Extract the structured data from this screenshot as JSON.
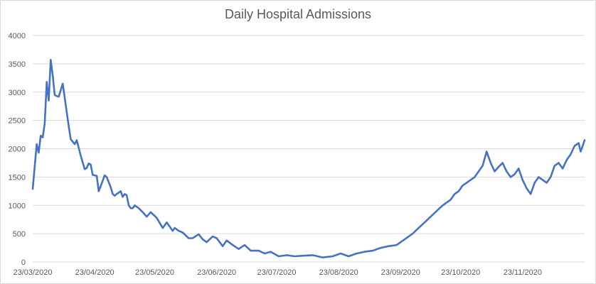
{
  "chart_data": {
    "type": "line",
    "title": "Daily Hospital Admissions",
    "xlabel": "",
    "ylabel": "",
    "ylim": [
      0,
      4000
    ],
    "yticks": [
      0,
      500,
      1000,
      1500,
      2000,
      2500,
      3000,
      3500,
      4000
    ],
    "xlim": [
      "2020-03-23",
      "2020-12-24"
    ],
    "xticks": [
      {
        "date": "2020-03-23",
        "label": "23/03/2020"
      },
      {
        "date": "2020-04-23",
        "label": "23/04/2020"
      },
      {
        "date": "2020-05-23",
        "label": "23/05/2020"
      },
      {
        "date": "2020-06-23",
        "label": "23/06/2020"
      },
      {
        "date": "2020-07-23",
        "label": "23/07/2020"
      },
      {
        "date": "2020-08-23",
        "label": "23/08/2020"
      },
      {
        "date": "2020-09-23",
        "label": "23/09/2020"
      },
      {
        "date": "2020-10-23",
        "label": "23/10/2020"
      },
      {
        "date": "2020-11-23",
        "label": "23/11/2020"
      }
    ],
    "grid": true,
    "legend": "none",
    "color": "#4472c4",
    "series": [
      {
        "x": [
          "2020-03-23",
          "2020-03-25",
          "2020-03-26",
          "2020-03-27",
          "2020-03-28",
          "2020-03-29",
          "2020-03-30",
          "2020-03-31",
          "2020-04-01",
          "2020-04-02",
          "2020-04-03",
          "2020-04-04",
          "2020-04-05",
          "2020-04-07",
          "2020-04-09",
          "2020-04-10",
          "2020-04-11",
          "2020-04-13",
          "2020-04-14",
          "2020-04-16",
          "2020-04-18",
          "2020-04-19",
          "2020-04-20",
          "2020-04-21",
          "2020-04-22",
          "2020-04-23",
          "2020-04-24",
          "2020-04-25",
          "2020-04-26",
          "2020-04-28",
          "2020-04-29",
          "2020-05-01",
          "2020-05-02",
          "2020-05-03",
          "2020-05-04",
          "2020-05-06",
          "2020-05-07",
          "2020-05-08",
          "2020-05-09",
          "2020-05-10",
          "2020-05-11",
          "2020-05-12",
          "2020-05-13",
          "2020-05-15",
          "2020-05-17",
          "2020-05-19",
          "2020-05-21",
          "2020-05-24",
          "2020-05-27",
          "2020-05-29",
          "2020-06-01",
          "2020-06-02",
          "2020-06-04",
          "2020-06-06",
          "2020-06-09",
          "2020-06-11",
          "2020-06-14",
          "2020-06-16",
          "2020-06-18",
          "2020-06-21",
          "2020-06-23",
          "2020-06-26",
          "2020-06-28",
          "2020-07-01",
          "2020-07-04",
          "2020-07-07",
          "2020-07-10",
          "2020-07-14",
          "2020-07-17",
          "2020-07-20",
          "2020-07-24",
          "2020-07-28",
          "2020-08-01",
          "2020-08-05",
          "2020-08-10",
          "2020-08-15",
          "2020-08-20",
          "2020-08-24",
          "2020-08-28",
          "2020-09-01",
          "2020-09-05",
          "2020-09-09",
          "2020-09-13",
          "2020-09-17",
          "2020-09-21",
          "2020-09-25",
          "2020-09-29",
          "2020-10-02",
          "2020-10-05",
          "2020-10-08",
          "2020-10-11",
          "2020-10-14",
          "2020-10-16",
          "2020-10-18",
          "2020-10-20",
          "2020-10-22",
          "2020-10-24",
          "2020-10-26",
          "2020-10-28",
          "2020-10-30",
          "2020-11-01",
          "2020-11-03",
          "2020-11-05",
          "2020-11-07",
          "2020-11-09",
          "2020-11-11",
          "2020-11-13",
          "2020-11-15",
          "2020-11-17",
          "2020-11-19",
          "2020-11-21",
          "2020-11-23",
          "2020-11-25",
          "2020-11-27",
          "2020-11-29",
          "2020-12-01",
          "2020-12-03",
          "2020-12-05",
          "2020-12-07",
          "2020-12-09",
          "2020-12-11",
          "2020-12-13",
          "2020-12-15",
          "2020-12-17",
          "2020-12-19",
          "2020-12-21",
          "2020-12-22",
          "2020-12-23",
          "2020-12-24"
        ],
        "y": [
          1290,
          2080,
          1930,
          2230,
          2200,
          2450,
          3180,
          2850,
          3570,
          3300,
          2950,
          2930,
          2920,
          3150,
          2650,
          2400,
          2170,
          2080,
          2150,
          1880,
          1640,
          1660,
          1740,
          1720,
          1540,
          1530,
          1520,
          1250,
          1340,
          1530,
          1500,
          1320,
          1200,
          1170,
          1200,
          1250,
          1150,
          1200,
          1180,
          1000,
          950,
          950,
          1000,
          950,
          880,
          800,
          880,
          780,
          600,
          700,
          550,
          600,
          550,
          520,
          420,
          420,
          490,
          400,
          350,
          450,
          420,
          280,
          380,
          300,
          230,
          300,
          200,
          200,
          150,
          180,
          100,
          120,
          100,
          110,
          120,
          80,
          100,
          150,
          100,
          150,
          180,
          200,
          250,
          280,
          300,
          400,
          500,
          600,
          700,
          800,
          900,
          1000,
          1050,
          1100,
          1200,
          1250,
          1350,
          1400,
          1450,
          1500,
          1600,
          1700,
          1950,
          1750,
          1600,
          1680,
          1750,
          1600,
          1500,
          1550,
          1650,
          1450,
          1300,
          1200,
          1400,
          1500,
          1450,
          1400,
          1500,
          1700,
          1750,
          1650,
          1800,
          1900,
          2050,
          2100,
          1950,
          2050,
          2150
        ]
      }
    ]
  }
}
